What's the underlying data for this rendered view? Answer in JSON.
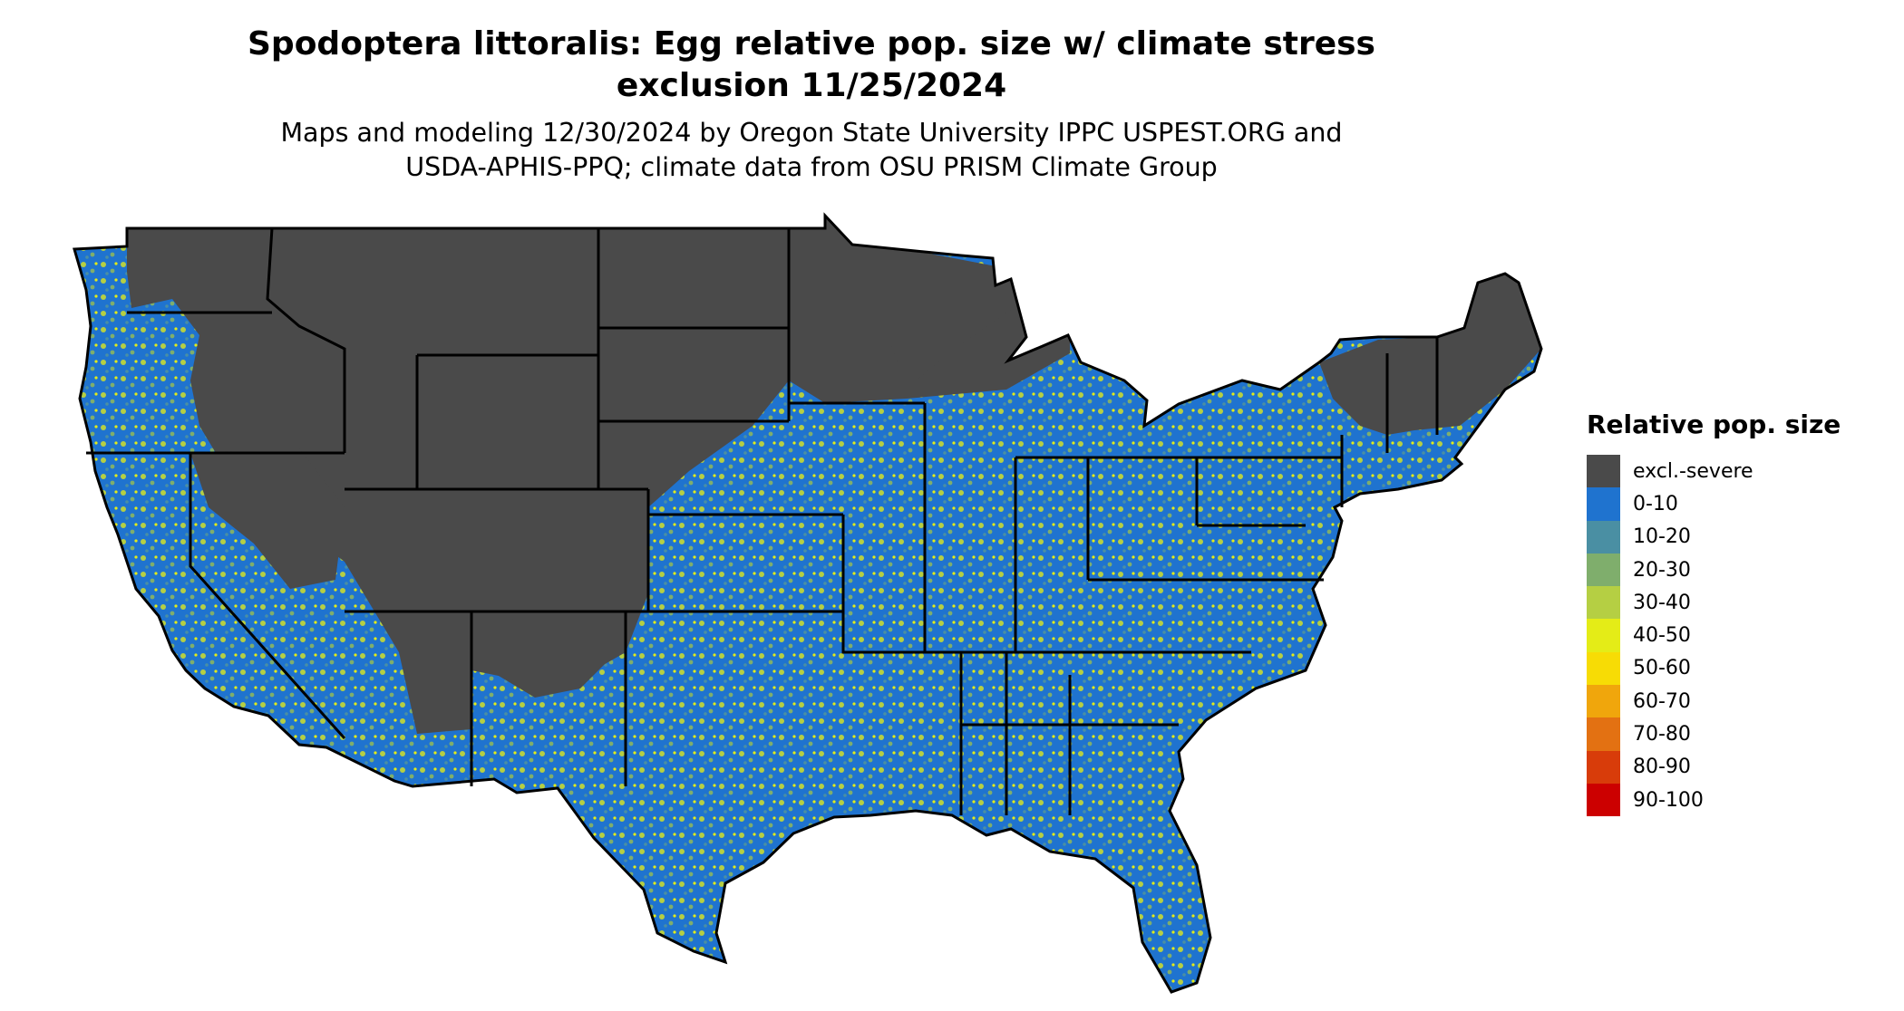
{
  "title_line1": "Spodoptera littoralis: Egg relative pop. size w/ climate stress",
  "title_line2": "exclusion 11/25/2024",
  "subtitle_line1": "Maps and modeling 12/30/2024 by Oregon State University IPPC USPEST.ORG and",
  "subtitle_line2": "USDA-APHIS-PPQ; climate data from OSU PRISM Climate Group",
  "legend": {
    "title": "Relative pop. size",
    "items": [
      {
        "label": "excl.-severe",
        "color": "#4a4a4a"
      },
      {
        "label": "0-10",
        "color": "#1f73cf"
      },
      {
        "label": "10-20",
        "color": "#4a8fa3"
      },
      {
        "label": "20-30",
        "color": "#7fae6c"
      },
      {
        "label": "30-40",
        "color": "#b5cf43"
      },
      {
        "label": "40-50",
        "color": "#e4ec17"
      },
      {
        "label": "50-60",
        "color": "#f7dc05"
      },
      {
        "label": "60-70",
        "color": "#f0a60c"
      },
      {
        "label": "70-80",
        "color": "#e37112"
      },
      {
        "label": "80-90",
        "color": "#d83c0a"
      },
      {
        "label": "90-100",
        "color": "#cc0000"
      }
    ]
  }
}
